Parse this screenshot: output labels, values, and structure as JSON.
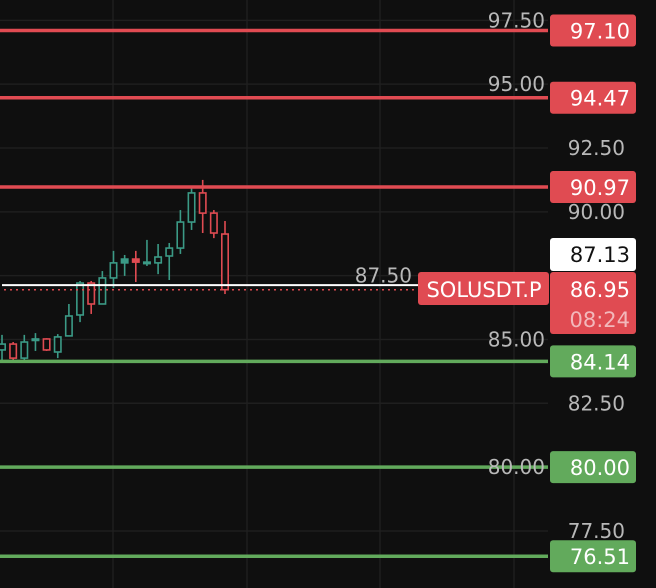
{
  "chart_data": {
    "type": "candlestick",
    "symbol": "SOLUSDT.P",
    "ylim": [
      75.5,
      97.7
    ],
    "grid": true,
    "y_ticks": [
      "97.50",
      "95.00",
      "92.50",
      "90.00",
      "87.50",
      "85.00",
      "82.50",
      "80.00",
      "77.50"
    ],
    "candles": [
      {
        "o": 84.59,
        "h": 85.18,
        "l": 84.12,
        "c": 84.82
      },
      {
        "o": 84.82,
        "h": 84.9,
        "l": 84.08,
        "c": 84.27
      },
      {
        "o": 84.27,
        "h": 85.18,
        "l": 84.2,
        "c": 84.9
      },
      {
        "o": 85.0,
        "h": 85.25,
        "l": 84.55,
        "c": 85.02
      },
      {
        "o": 85.02,
        "h": 85.05,
        "l": 84.55,
        "c": 84.59
      },
      {
        "o": 84.51,
        "h": 85.21,
        "l": 84.27,
        "c": 85.1
      },
      {
        "o": 85.14,
        "h": 86.39,
        "l": 85.14,
        "c": 85.92
      },
      {
        "o": 85.96,
        "h": 87.29,
        "l": 85.68,
        "c": 87.21
      },
      {
        "o": 87.21,
        "h": 87.29,
        "l": 86.0,
        "c": 86.39
      },
      {
        "o": 86.39,
        "h": 87.68,
        "l": 86.39,
        "c": 87.41
      },
      {
        "o": 87.41,
        "h": 88.47,
        "l": 87.02,
        "c": 88.0
      },
      {
        "o": 88.0,
        "h": 88.31,
        "l": 87.49,
        "c": 88.15
      },
      {
        "o": 88.15,
        "h": 88.47,
        "l": 87.25,
        "c": 88.03
      },
      {
        "o": 88.02,
        "h": 88.9,
        "l": 87.88,
        "c": 88.03
      },
      {
        "o": 88.0,
        "h": 88.74,
        "l": 87.56,
        "c": 88.23
      },
      {
        "o": 88.27,
        "h": 88.78,
        "l": 87.33,
        "c": 88.58
      },
      {
        "o": 88.58,
        "h": 90.07,
        "l": 88.35,
        "c": 89.6
      },
      {
        "o": 89.6,
        "h": 91.01,
        "l": 89.29,
        "c": 90.74
      },
      {
        "o": 90.74,
        "h": 91.25,
        "l": 89.17,
        "c": 89.95
      },
      {
        "o": 89.95,
        "h": 90.07,
        "l": 88.97,
        "c": 89.17
      },
      {
        "o": 89.13,
        "h": 89.64,
        "l": 86.78,
        "c": 86.95
      }
    ],
    "horizontal_lines": [
      {
        "price": "97.10",
        "color": "#e04b52"
      },
      {
        "price": "94.47",
        "color": "#e04b52"
      },
      {
        "price": "90.97",
        "color": "#e04b52"
      },
      {
        "price": "84.14",
        "color": "#62aa5c"
      },
      {
        "price": "80.00",
        "color": "#62aa5c"
      },
      {
        "price": "76.51",
        "color": "#62aa5c"
      }
    ],
    "reference_price": {
      "price": "87.13",
      "color": "#ffffff"
    },
    "last_price": {
      "price": "86.95",
      "countdown": "08:24",
      "color": "#e04b52"
    },
    "colors": {
      "up": "#3b9a86",
      "down": "#e04b52",
      "background": "#0f0f0f",
      "grid": "#1f1f1f"
    }
  }
}
